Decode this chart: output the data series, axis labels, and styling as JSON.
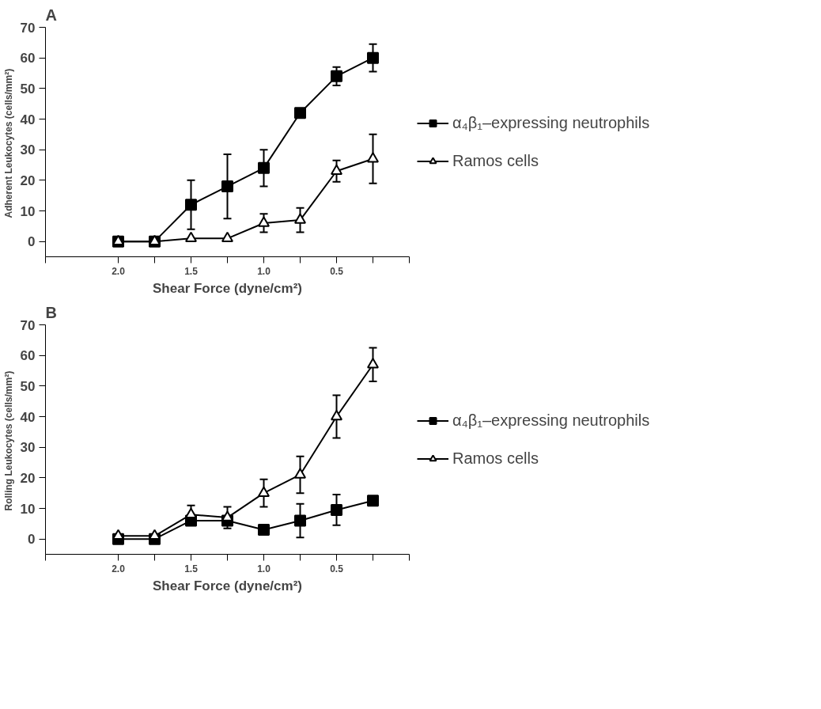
{
  "chart_data": [
    {
      "type": "line",
      "title": "A",
      "xlabel": "Shear Force (dyne/cm²)",
      "ylabel": "Adherent Leukocytes  (cells/mm²)",
      "x": [
        2.0,
        1.75,
        1.5,
        1.25,
        1.0,
        0.75,
        0.5,
        0.25
      ],
      "xlim": [
        2.5,
        0
      ],
      "xticks": [
        {
          "value": 2.5,
          "label": null
        },
        {
          "value": 2.0,
          "label": "2.0"
        },
        {
          "value": 1.75,
          "label": null
        },
        {
          "value": 1.5,
          "label": "1.5"
        },
        {
          "value": 1.25,
          "label": null
        },
        {
          "value": 1.0,
          "label": "1.0"
        },
        {
          "value": 0.75,
          "label": null
        },
        {
          "value": 0.5,
          "label": "0.5"
        },
        {
          "value": 0.25,
          "label": null
        },
        {
          "value": 0,
          "label": null
        }
      ],
      "ylim": [
        -5,
        70
      ],
      "yticks": [
        0,
        10,
        20,
        30,
        40,
        50,
        60,
        70
      ],
      "grid": false,
      "legend": "right",
      "series": [
        {
          "name": "α₄β₁–expressing neutrophils",
          "color": "#000000",
          "marker": "square",
          "values": [
            0,
            0,
            12,
            18,
            24,
            42,
            54,
            60
          ],
          "errors": [
            null,
            null,
            8,
            10.5,
            6,
            null,
            3,
            4.5
          ]
        },
        {
          "name": "Ramos cells",
          "color": "#000000",
          "marker": "triangle",
          "values": [
            0,
            0,
            1,
            1,
            6,
            7,
            23,
            27
          ],
          "errors": [
            null,
            null,
            null,
            null,
            3,
            4,
            3.5,
            8
          ]
        }
      ]
    },
    {
      "type": "line",
      "title": "B",
      "xlabel": "Shear Force (dyne/cm²)",
      "ylabel": "Rolling Leukocytes  (cells/mm²)",
      "x": [
        2.0,
        1.75,
        1.5,
        1.25,
        1.0,
        0.75,
        0.5,
        0.25
      ],
      "xlim": [
        2.5,
        0
      ],
      "xticks": [
        {
          "value": 2.5,
          "label": null
        },
        {
          "value": 2.0,
          "label": "2.0"
        },
        {
          "value": 1.75,
          "label": null
        },
        {
          "value": 1.5,
          "label": "1.5"
        },
        {
          "value": 1.25,
          "label": null
        },
        {
          "value": 1.0,
          "label": "1.0"
        },
        {
          "value": 0.75,
          "label": null
        },
        {
          "value": 0.5,
          "label": "0.5"
        },
        {
          "value": 0.25,
          "label": null
        },
        {
          "value": 0,
          "label": null
        }
      ],
      "ylim": [
        -5,
        70
      ],
      "yticks": [
        0,
        10,
        20,
        30,
        40,
        50,
        60,
        70
      ],
      "grid": false,
      "legend": "right",
      "series": [
        {
          "name": "α₄β₁–expressing neutrophils",
          "color": "#000000",
          "marker": "square",
          "values": [
            0,
            0,
            6,
            6,
            3,
            6,
            9.5,
            12.5
          ],
          "errors": [
            null,
            null,
            null,
            null,
            null,
            5.5,
            5,
            null
          ]
        },
        {
          "name": "Ramos cells",
          "color": "#000000",
          "marker": "triangle",
          "values": [
            1,
            1,
            8,
            7,
            15,
            21,
            40,
            57
          ],
          "errors": [
            null,
            null,
            3,
            3.5,
            4.5,
            6,
            7,
            5.5
          ]
        }
      ]
    }
  ]
}
